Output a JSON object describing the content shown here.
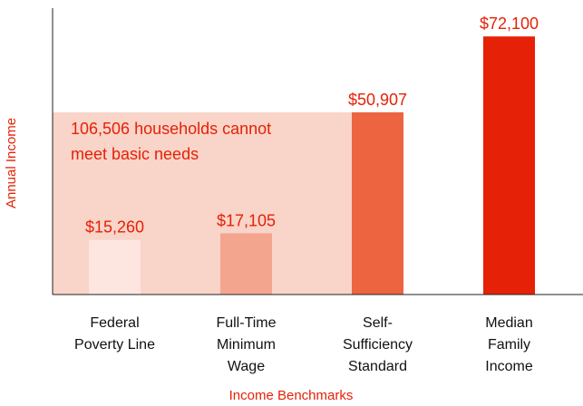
{
  "chart_data": {
    "type": "bar",
    "categories": [
      "Federal\nPoverty Line",
      "Full-Time\nMinimum\nWage",
      "Self-\nSufficiency\nStandard",
      "Median\nFamily\nIncome"
    ],
    "values": [
      15260,
      17105,
      50907,
      72100
    ],
    "value_labels": [
      "$15,260",
      "$17,105",
      "$50,907",
      "$72,100"
    ],
    "colors": [
      "#fce6df",
      "#f4a58e",
      "#ec6440",
      "#e52207"
    ],
    "annotation": "106,506 households cannot\nmeet basic needs",
    "shade_color": "#f9d4c9",
    "xlabel": "Income Benchmarks",
    "ylabel": "Annual Income",
    "ylim": [
      0,
      80000
    ]
  }
}
